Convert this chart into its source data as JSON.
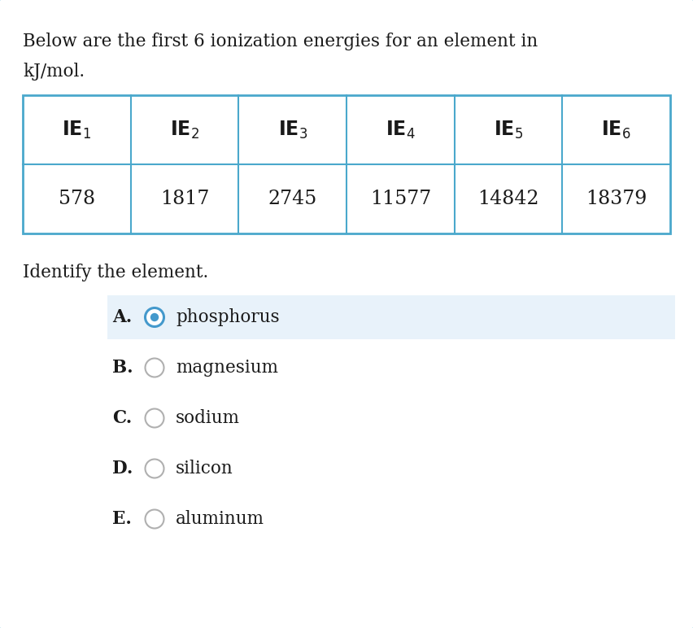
{
  "title_line1": "Below are the first 6 ionization energies for an element in",
  "title_line2": "kJ/mol.",
  "header_subscripts": [
    "1",
    "2",
    "3",
    "4",
    "5",
    "6"
  ],
  "values": [
    "578",
    "1817",
    "2745",
    "11577",
    "14842",
    "18379"
  ],
  "question": "Identify the element.",
  "choices": [
    {
      "letter": "A.",
      "text": "phosphorus",
      "selected": true
    },
    {
      "letter": "B.",
      "text": "magnesium",
      "selected": false
    },
    {
      "letter": "C.",
      "text": "sodium",
      "selected": false
    },
    {
      "letter": "D.",
      "text": "silicon",
      "selected": false
    },
    {
      "letter": "E.",
      "text": "aluminum",
      "selected": false
    }
  ],
  "bg_color": "#ffffff",
  "outer_border_color": "#5bb8d4",
  "table_border_color": "#4aa8cc",
  "text_color": "#1a1a1a",
  "selected_bg": "#e8f2fa",
  "selected_circle_outer": "#4499cc",
  "selected_dot_color": "#4499cc",
  "unselected_circle_border": "#b0b0b0",
  "fig_width": 8.52,
  "fig_height": 7.72,
  "dpi": 100
}
